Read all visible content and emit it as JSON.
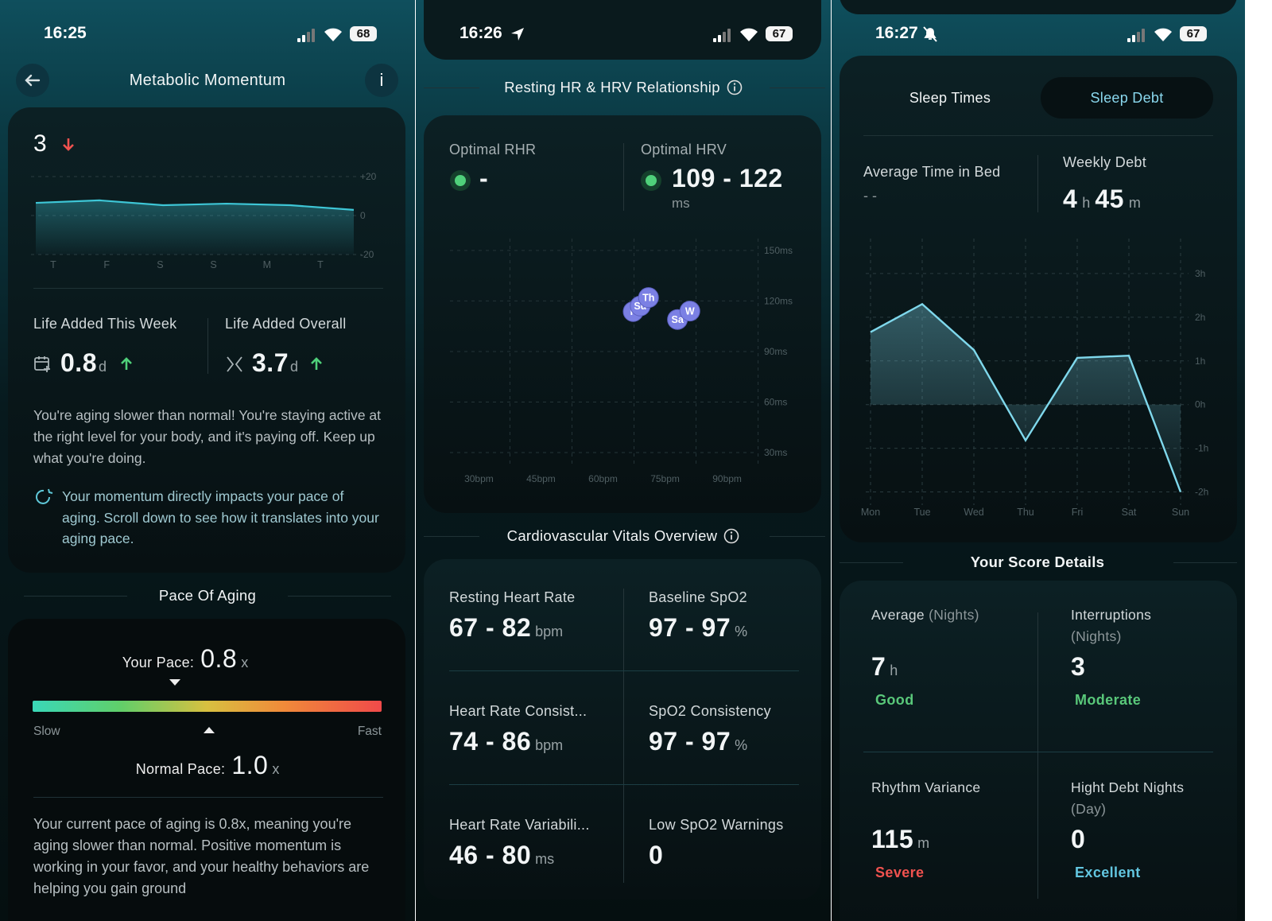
{
  "metabolic": {
    "status": {
      "time": "16:25",
      "battery": "68"
    },
    "title": "Metabolic Momentum",
    "info_icon": "i",
    "score": "3",
    "chart": {
      "type": "line",
      "categories": [
        "T",
        "F",
        "S",
        "S",
        "M",
        "T"
      ],
      "values": [
        6.5,
        7.8,
        5.3,
        6.1,
        5.3,
        2.9
      ],
      "ylim": [
        -20,
        20
      ],
      "yticks": [
        {
          "value": 20,
          "label": "+20"
        },
        0,
        -20
      ],
      "color": "#3ec6d6"
    },
    "life_week": {
      "label": "Life Added This Week",
      "value": "0.8",
      "unit": "d"
    },
    "life_overall": {
      "label": "Life Added Overall",
      "value": "3.7",
      "unit": "d"
    },
    "summary": "You're aging slower than normal! You're staying active at the right level for your body, and it's paying off. Keep up what you're doing.",
    "note": "Your momentum directly impacts your pace of aging. Scroll down to see how it translates into your aging pace.",
    "pace": {
      "title": "Pace Of Aging",
      "your_label": "Your Pace:",
      "your_value": "0.8",
      "your_unit": "x",
      "slow": "Slow",
      "fast": "Fast",
      "normal_label": "Normal Pace:",
      "normal_value": "1.0",
      "normal_unit": "x",
      "description": "Your current pace of aging is 0.8x, meaning you're aging slower than normal. Positive momentum is working in your favor, and your healthy behaviors are helping you gain ground"
    }
  },
  "heart": {
    "status": {
      "time": "16:26",
      "battery": "67"
    },
    "title": "Resting HR & HRV Relationship",
    "rhr": {
      "label": "Optimal RHR",
      "value": "-"
    },
    "hrv": {
      "label": "Optimal HRV",
      "value": "109 - 122",
      "unit": "ms"
    },
    "chart": {
      "type": "scatter",
      "x": [
        67.3,
        69,
        71,
        78,
        81
      ],
      "values": [
        113.7,
        117,
        122,
        109,
        114
      ],
      "point_labels": [
        "F",
        "Su",
        "Th",
        "Sa",
        "W"
      ],
      "color": "#7b80e4",
      "xlim": [
        23,
        97
      ],
      "ylim": [
        22,
        157
      ],
      "grid": true,
      "xticks": [
        {
          "value": 30,
          "label": "30bpm"
        },
        {
          "value": 45,
          "label": "45bpm"
        },
        {
          "value": 60,
          "label": "60bpm"
        },
        {
          "value": 75,
          "label": "75bpm"
        },
        {
          "value": 90,
          "label": "90bpm"
        }
      ],
      "yticks": [
        {
          "value": 150,
          "label": "150ms"
        },
        {
          "value": 120,
          "label": "120ms"
        },
        {
          "value": 90,
          "label": "90ms"
        },
        {
          "value": 60,
          "label": "60ms"
        },
        {
          "value": 30,
          "label": "30ms"
        }
      ]
    },
    "vitals_title": "Cardiovascular Vitals Overview",
    "vitals": [
      {
        "label": "Resting Heart Rate",
        "value": "67 - 82",
        "unit": "bpm"
      },
      {
        "label": "Baseline SpO2",
        "value": "97 - 97",
        "unit": "%"
      },
      {
        "label": "Heart Rate Consist...",
        "value": "74 - 86",
        "unit": "bpm"
      },
      {
        "label": "SpO2 Consistency",
        "value": "97 - 97",
        "unit": "%"
      },
      {
        "label": "Heart Rate Variabili...",
        "value": "46 - 80",
        "unit": "ms"
      },
      {
        "label": "Low SpO2 Warnings",
        "value": "0"
      }
    ]
  },
  "sleep": {
    "status": {
      "time": "16:27",
      "battery": "67"
    },
    "tabs": [
      "Sleep Times",
      "Sleep Debt"
    ],
    "time_in_bed": {
      "label": "Average Time in Bed",
      "value": "- -"
    },
    "weekly_debt": {
      "label": "Weekly Debt",
      "hours": "4",
      "hours_unit": "h",
      "minutes": "45",
      "minutes_unit": "m"
    },
    "chart": {
      "type": "line",
      "categories": [
        "Mon",
        "Tue",
        "Wed",
        "Thu",
        "Fri",
        "Sat",
        "Sun"
      ],
      "values": [
        1.66,
        2.3,
        1.25,
        -0.82,
        1.07,
        1.12,
        -2.0
      ],
      "color": "#7fd8ec",
      "ylim": [
        -2.3,
        3.8
      ],
      "grid": true,
      "yticks": [
        {
          "value": 3,
          "label": "3h"
        },
        {
          "value": 2,
          "label": "2h"
        },
        {
          "value": 1,
          "label": "1h"
        },
        {
          "value": 0,
          "label": "0h"
        },
        {
          "value": -1,
          "label": "-1h"
        },
        {
          "value": -2,
          "label": "-2h"
        }
      ]
    },
    "details_title": "Your Score Details",
    "details": [
      {
        "label": "Average",
        "sublabel": "(Nights)",
        "value": "7",
        "unit": "h",
        "rating": "Good",
        "rating_color": "#59c87a"
      },
      {
        "label": "Interruptions",
        "sublabel": "(Nights)",
        "value": "3",
        "rating": "Moderate",
        "rating_color": "#59c87a"
      },
      {
        "label": "Rhythm Variance",
        "value": "115",
        "unit": "m",
        "rating": "Severe",
        "rating_color": "#f0524f"
      },
      {
        "label": "Hight Debt Nights",
        "sublabel": "(Day)",
        "value": "0",
        "rating": "Excellent",
        "rating_color": "#62c6e0"
      }
    ]
  }
}
